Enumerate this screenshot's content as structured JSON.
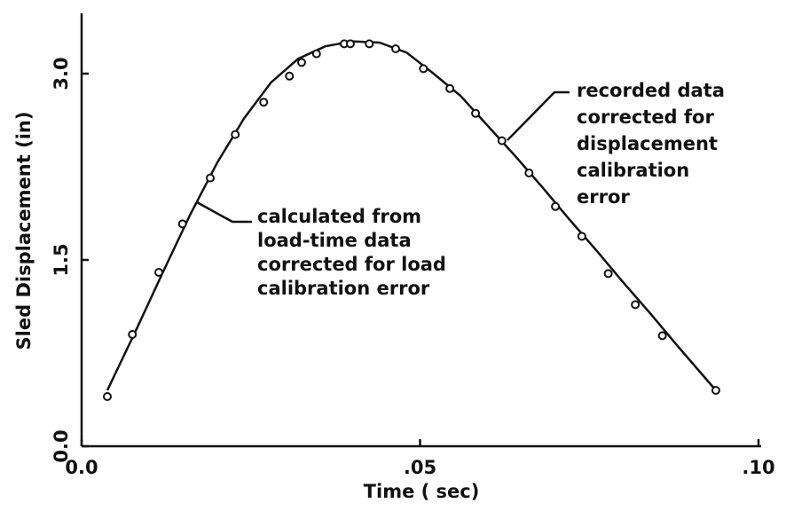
{
  "chart_data": {
    "type": "line",
    "xlabel": "Time ( sec)",
    "ylabel": "Sled Displacement (in)",
    "xlim": [
      0,
      0.1
    ],
    "ylim": [
      0,
      3.6
    ],
    "xticks": [
      {
        "value": 0,
        "label": "0.0"
      },
      {
        "value": 0.05,
        "label": ".05"
      },
      {
        "value": 0.1,
        "label": ".10"
      }
    ],
    "yticks": [
      {
        "value": 0,
        "label": "0.0"
      },
      {
        "value": 1.5,
        "label": "1.5"
      },
      {
        "value": 3,
        "label": "3.0"
      }
    ],
    "series": [
      {
        "style": "line",
        "color": "#111",
        "x": [
          0.0038,
          0.008,
          0.012,
          0.016,
          0.02,
          0.024,
          0.028,
          0.032,
          0.036,
          0.04,
          0.044,
          0.048,
          0.052,
          0.056,
          0.06,
          0.064,
          0.068,
          0.072,
          0.076,
          0.08,
          0.084,
          0.088,
          0.0937
        ],
        "values": [
          0.45,
          0.93,
          1.4,
          1.86,
          2.28,
          2.64,
          2.93,
          3.12,
          3.22,
          3.26,
          3.25,
          3.17,
          3.0,
          2.82,
          2.58,
          2.34,
          2.09,
          1.83,
          1.58,
          1.32,
          1.07,
          0.81,
          0.45
        ]
      },
      {
        "style": "points",
        "color": "#111",
        "x": [
          0.0038,
          0.0075,
          0.0114,
          0.0149,
          0.019,
          0.0227,
          0.0269,
          0.0307,
          0.0325,
          0.0347,
          0.0388,
          0.0397,
          0.0425,
          0.0464,
          0.0505,
          0.0544,
          0.0582,
          0.0621,
          0.0661,
          0.07,
          0.0739,
          0.0778,
          0.0818,
          0.0858,
          0.0937
        ],
        "values": [
          0.4,
          0.9,
          1.4,
          1.79,
          2.16,
          2.51,
          2.77,
          2.98,
          3.09,
          3.16,
          3.24,
          3.24,
          3.24,
          3.2,
          3.04,
          2.88,
          2.68,
          2.46,
          2.2,
          1.93,
          1.69,
          1.39,
          1.14,
          0.89,
          0.45
        ]
      }
    ],
    "annotations": [
      {
        "lines": [
          "calculated from",
          "load-time data",
          "corrected for load",
          "calibration error"
        ]
      },
      {
        "lines": [
          "recorded data",
          "corrected for",
          "displacement",
          "calibration",
          "error"
        ]
      }
    ]
  }
}
